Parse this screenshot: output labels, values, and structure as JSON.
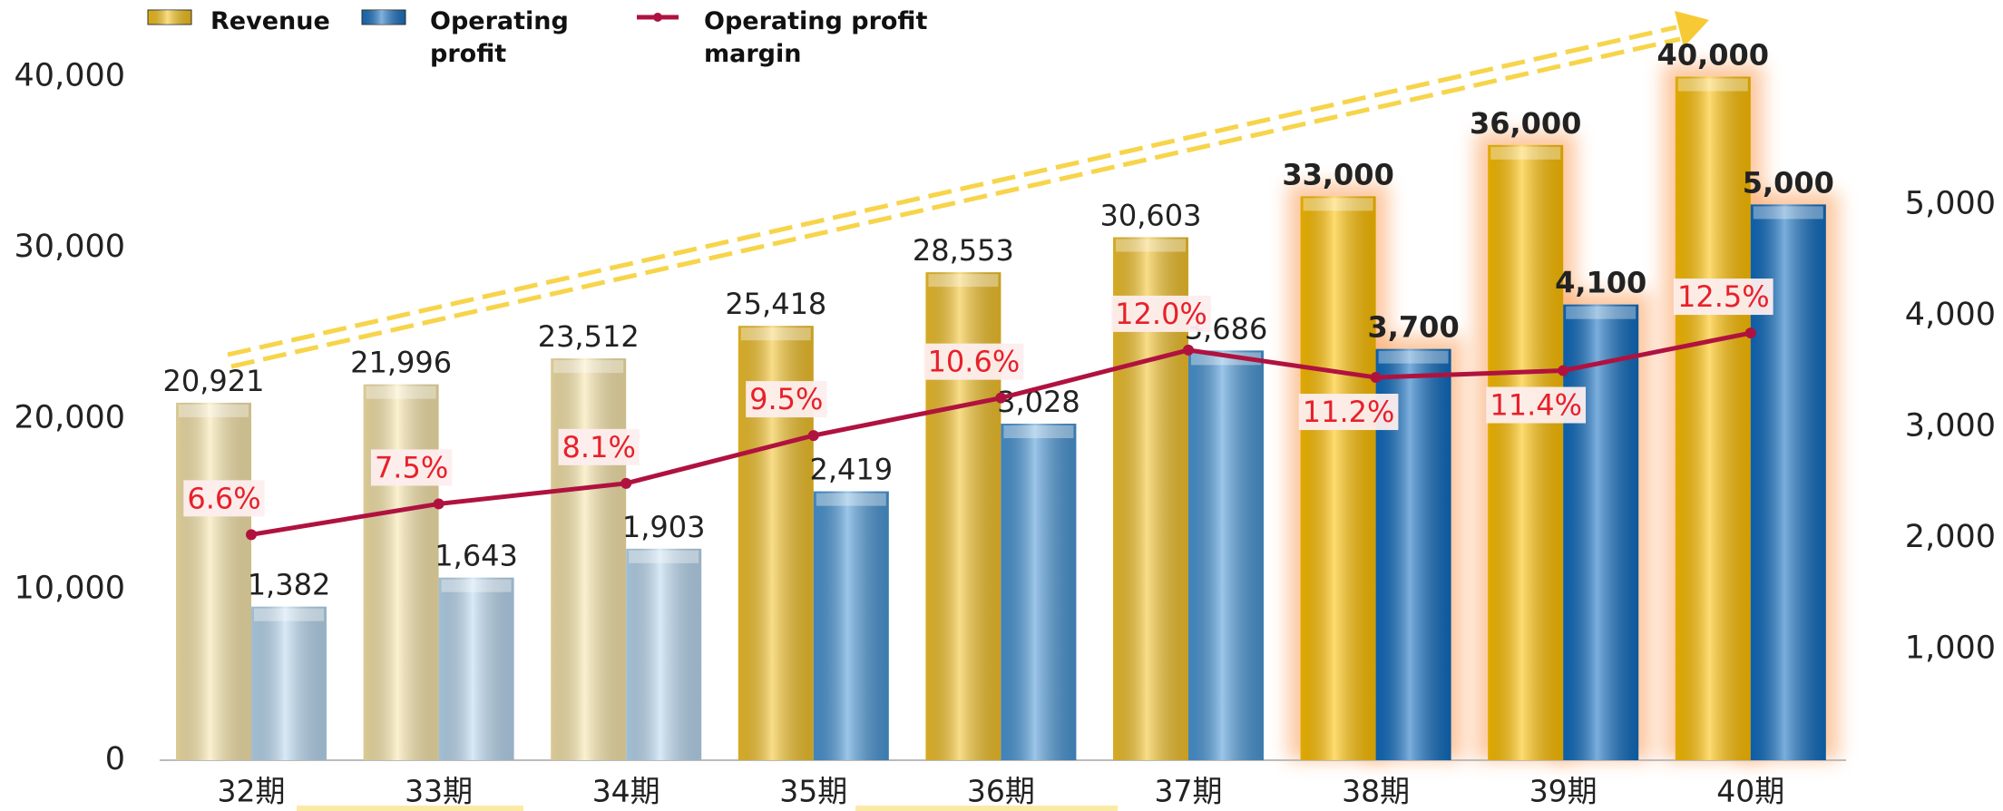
{
  "chart_data": {
    "type": "bar_line",
    "categories": [
      "32期",
      "33期",
      "34期",
      "35期",
      "36期",
      "37期",
      "38期",
      "39期",
      "40期"
    ],
    "highlight": [
      false,
      false,
      false,
      false,
      false,
      false,
      true,
      true,
      true
    ],
    "ylim": [
      0,
      40000
    ],
    "yticks": [
      0,
      {
        "value": 10000,
        "label": "10,000"
      },
      {
        "value": 20000,
        "label": "20,000"
      },
      {
        "value": 30000,
        "label": "30,000"
      },
      {
        "value": 40000,
        "label": "40,000"
      }
    ],
    "y2lim": [
      0,
      6150
    ],
    "y2ticks": [
      {
        "value": 1000,
        "label": "1,000"
      },
      {
        "value": 2000,
        "label": "2,000"
      },
      {
        "value": 3000,
        "label": "3,000"
      },
      {
        "value": 4000,
        "label": "4,000"
      },
      {
        "value": 5000,
        "label": "5,000"
      }
    ],
    "y3lim": [
      0,
      20
    ],
    "series": [
      {
        "name": "Revenue",
        "type": "bar",
        "color": "#f5c21b",
        "colors": [
          "#f8e6aa",
          "#f8e6aa",
          "#f8e6aa",
          "#f3c22a",
          "#f3c22a",
          "#f3c22a",
          "#ffc000",
          "#ffc000",
          "#ffc000"
        ],
        "values": [
          20921,
          21996,
          23512,
          25418,
          28553,
          30603,
          33000,
          36000,
          40000
        ],
        "value_labels": [
          "20,921",
          "21,996",
          "23,512",
          "25,418",
          "28,553",
          "30,603",
          "33,000",
          "36,000",
          "40,000"
        ]
      },
      {
        "name": "Operating profit",
        "type": "bar",
        "axis": "y2",
        "color": "#1a72c2",
        "colors": [
          "#b9d8f0",
          "#b9d8f0",
          "#b9d8f0",
          "#4a97d6",
          "#4a97d6",
          "#4a97d6",
          "#0f6cc0",
          "#0f6cc0",
          "#0f6cc0"
        ],
        "values": [
          1382,
          1643,
          1903,
          2419,
          3028,
          3686,
          3700,
          4100,
          5000
        ],
        "value_labels": [
          "1,382",
          "1,643",
          "1,903",
          "2,419",
          "3,028",
          "3,686",
          "3,700",
          "4,100",
          "5,000"
        ]
      },
      {
        "name": "Operating profit margin",
        "type": "line",
        "axis": "y3",
        "color": "#b0123f",
        "label_color": "#e8202a",
        "values": [
          6.6,
          7.5,
          8.1,
          9.5,
          10.6,
          12.0,
          11.2,
          11.4,
          12.5
        ],
        "value_labels": [
          "6.6%",
          "7.5%",
          "8.1%",
          "9.5%",
          "10.6%",
          "12.0%",
          "11.2%",
          "11.4%",
          "12.5%"
        ]
      }
    ]
  }
}
